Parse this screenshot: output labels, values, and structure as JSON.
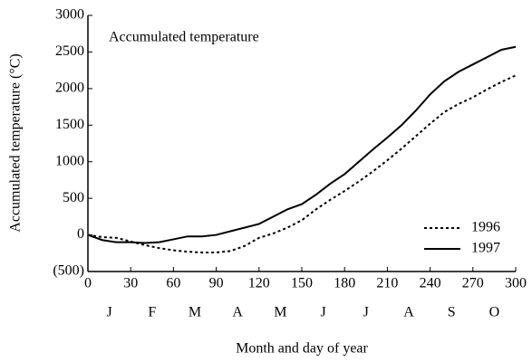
{
  "chart_data": {
    "type": "line",
    "title": "Accumulated temperature",
    "y_label": "Accumulated temperature (°C)",
    "x_label": "Month and day of year",
    "x": [
      0,
      10,
      20,
      30,
      40,
      50,
      60,
      70,
      80,
      90,
      100,
      110,
      120,
      130,
      140,
      150,
      160,
      170,
      180,
      190,
      200,
      210,
      220,
      230,
      240,
      250,
      260,
      270,
      280,
      290,
      300
    ],
    "series": [
      {
        "name": "1996",
        "color": "#000000",
        "dash": "dotted",
        "values": [
          0,
          -30,
          -40,
          -90,
          -140,
          -180,
          -210,
          -230,
          -240,
          -240,
          -220,
          -150,
          -40,
          20,
          100,
          200,
          350,
          480,
          600,
          730,
          870,
          1020,
          1180,
          1350,
          1520,
          1680,
          1790,
          1880,
          1990,
          2090,
          2180
        ]
      },
      {
        "name": "1997",
        "color": "#000000",
        "dash": "solid",
        "values": [
          0,
          -70,
          -100,
          -100,
          -110,
          -100,
          -60,
          -20,
          -20,
          0,
          50,
          100,
          150,
          250,
          350,
          420,
          550,
          700,
          830,
          1000,
          1170,
          1330,
          1500,
          1700,
          1920,
          2100,
          2230,
          2330,
          2430,
          2530,
          2570
        ]
      }
    ],
    "xlim": [
      0,
      300
    ],
    "xticks": [
      0,
      30,
      60,
      90,
      120,
      150,
      180,
      210,
      240,
      270,
      300
    ],
    "month_labels": [
      "J",
      "F",
      "M",
      "A",
      "M",
      "J",
      "J",
      "A",
      "S",
      "O"
    ],
    "ylim": [
      -500,
      3000
    ],
    "yticks": [
      {
        "value": -500,
        "label": "(500)"
      },
      0,
      500,
      1000,
      1500,
      2000,
      2500,
      3000
    ],
    "legend": "lower right",
    "grid": false
  }
}
